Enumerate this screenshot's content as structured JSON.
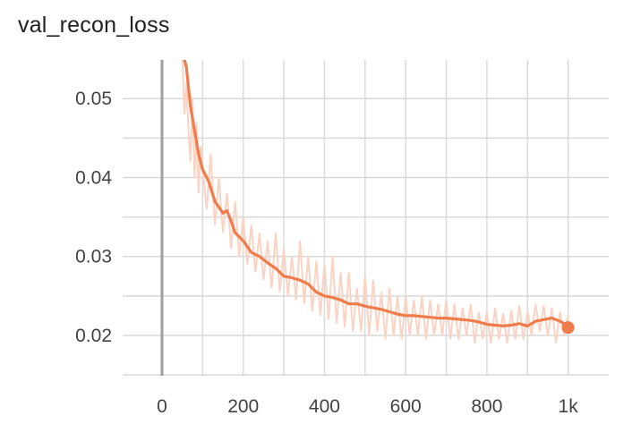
{
  "chart_data": {
    "type": "line",
    "title": "val_recon_loss",
    "xlabel": "",
    "ylabel": "",
    "xlim": [
      -97,
      1100
    ],
    "ylim": [
      0.0149,
      0.0549
    ],
    "x_ticks": [
      0,
      200,
      400,
      600,
      800,
      1000
    ],
    "x_tick_labels": [
      "0",
      "200",
      "400",
      "600",
      "800",
      "1k"
    ],
    "y_ticks": [
      0.02,
      0.03,
      0.04,
      0.05
    ],
    "y_tick_labels": [
      "0.02",
      "0.03",
      "0.04",
      "0.05"
    ],
    "grid": true,
    "series": [
      {
        "role": "smoothed",
        "color": "#f07c4c",
        "points": [
          [
            50,
            0.056
          ],
          [
            60,
            0.054
          ],
          [
            70,
            0.049
          ],
          [
            80,
            0.046
          ],
          [
            90,
            0.043
          ],
          [
            100,
            0.041
          ],
          [
            115,
            0.0395
          ],
          [
            130,
            0.037
          ],
          [
            150,
            0.0355
          ],
          [
            160,
            0.0358
          ],
          [
            170,
            0.0345
          ],
          [
            180,
            0.033
          ],
          [
            200,
            0.032
          ],
          [
            220,
            0.0305
          ],
          [
            240,
            0.03
          ],
          [
            260,
            0.0292
          ],
          [
            280,
            0.0285
          ],
          [
            300,
            0.0275
          ],
          [
            320,
            0.0273
          ],
          [
            340,
            0.027
          ],
          [
            360,
            0.0265
          ],
          [
            380,
            0.0255
          ],
          [
            400,
            0.025
          ],
          [
            420,
            0.0248
          ],
          [
            440,
            0.0245
          ],
          [
            460,
            0.024
          ],
          [
            480,
            0.024
          ],
          [
            500,
            0.0237
          ],
          [
            520,
            0.0235
          ],
          [
            540,
            0.0233
          ],
          [
            560,
            0.023
          ],
          [
            580,
            0.0227
          ],
          [
            600,
            0.0225
          ],
          [
            620,
            0.0225
          ],
          [
            640,
            0.0224
          ],
          [
            660,
            0.0223
          ],
          [
            680,
            0.0222
          ],
          [
            700,
            0.0222
          ],
          [
            720,
            0.0221
          ],
          [
            740,
            0.022
          ],
          [
            760,
            0.0219
          ],
          [
            780,
            0.0217
          ],
          [
            800,
            0.0214
          ],
          [
            820,
            0.0213
          ],
          [
            840,
            0.0212
          ],
          [
            860,
            0.0213
          ],
          [
            880,
            0.0215
          ],
          [
            900,
            0.0212
          ],
          [
            920,
            0.0218
          ],
          [
            940,
            0.022
          ],
          [
            960,
            0.0222
          ],
          [
            980,
            0.0218
          ],
          [
            990,
            0.0215
          ],
          [
            1000,
            0.021
          ]
        ]
      },
      {
        "role": "raw",
        "color": "#fbd3c3",
        "points": [
          [
            50,
            0.056
          ],
          [
            55,
            0.048
          ],
          [
            60,
            0.052
          ],
          [
            65,
            0.046
          ],
          [
            70,
            0.042
          ],
          [
            75,
            0.05
          ],
          [
            80,
            0.04
          ],
          [
            85,
            0.047
          ],
          [
            90,
            0.038
          ],
          [
            95,
            0.044
          ],
          [
            100,
            0.041
          ],
          [
            110,
            0.036
          ],
          [
            120,
            0.043
          ],
          [
            130,
            0.034
          ],
          [
            140,
            0.04
          ],
          [
            150,
            0.033
          ],
          [
            160,
            0.038
          ],
          [
            170,
            0.031
          ],
          [
            180,
            0.037
          ],
          [
            190,
            0.03
          ],
          [
            200,
            0.035
          ],
          [
            210,
            0.029
          ],
          [
            220,
            0.034
          ],
          [
            230,
            0.028
          ],
          [
            240,
            0.033
          ],
          [
            250,
            0.027
          ],
          [
            260,
            0.032
          ],
          [
            270,
            0.026
          ],
          [
            280,
            0.033
          ],
          [
            290,
            0.0255
          ],
          [
            300,
            0.031
          ],
          [
            310,
            0.025
          ],
          [
            320,
            0.03
          ],
          [
            330,
            0.0245
          ],
          [
            340,
            0.032
          ],
          [
            350,
            0.024
          ],
          [
            360,
            0.03
          ],
          [
            370,
            0.023
          ],
          [
            380,
            0.0295
          ],
          [
            390,
            0.0225
          ],
          [
            400,
            0.029
          ],
          [
            410,
            0.022
          ],
          [
            420,
            0.03
          ],
          [
            430,
            0.0215
          ],
          [
            440,
            0.028
          ],
          [
            450,
            0.021
          ],
          [
            460,
            0.028
          ],
          [
            470,
            0.0205
          ],
          [
            480,
            0.026
          ],
          [
            490,
            0.0205
          ],
          [
            500,
            0.0275
          ],
          [
            510,
            0.02
          ],
          [
            520,
            0.027
          ],
          [
            530,
            0.0205
          ],
          [
            540,
            0.0255
          ],
          [
            550,
            0.0195
          ],
          [
            560,
            0.026
          ],
          [
            570,
            0.02
          ],
          [
            580,
            0.025
          ],
          [
            590,
            0.0195
          ],
          [
            600,
            0.025
          ],
          [
            610,
            0.02
          ],
          [
            620,
            0.0245
          ],
          [
            630,
            0.02
          ],
          [
            640,
            0.025
          ],
          [
            650,
            0.0195
          ],
          [
            660,
            0.0245
          ],
          [
            670,
            0.02
          ],
          [
            680,
            0.024
          ],
          [
            690,
            0.02
          ],
          [
            700,
            0.0245
          ],
          [
            710,
            0.0195
          ],
          [
            720,
            0.024
          ],
          [
            730,
            0.0195
          ],
          [
            740,
            0.0235
          ],
          [
            750,
            0.02
          ],
          [
            760,
            0.024
          ],
          [
            770,
            0.019
          ],
          [
            780,
            0.023
          ],
          [
            790,
            0.0195
          ],
          [
            800,
            0.023
          ],
          [
            810,
            0.019
          ],
          [
            820,
            0.0235
          ],
          [
            830,
            0.0195
          ],
          [
            840,
            0.0228
          ],
          [
            850,
            0.019
          ],
          [
            860,
            0.0232
          ],
          [
            870,
            0.0195
          ],
          [
            880,
            0.0238
          ],
          [
            890,
            0.0195
          ],
          [
            900,
            0.023
          ],
          [
            910,
            0.02
          ],
          [
            920,
            0.024
          ],
          [
            930,
            0.0205
          ],
          [
            940,
            0.0238
          ],
          [
            950,
            0.02
          ],
          [
            960,
            0.0235
          ],
          [
            970,
            0.019
          ],
          [
            980,
            0.023
          ],
          [
            990,
            0.02
          ],
          [
            1000,
            0.0225
          ]
        ]
      }
    ],
    "last_point_marker": {
      "x": 1000,
      "y": 0.021,
      "color": "#f07c4c"
    }
  }
}
